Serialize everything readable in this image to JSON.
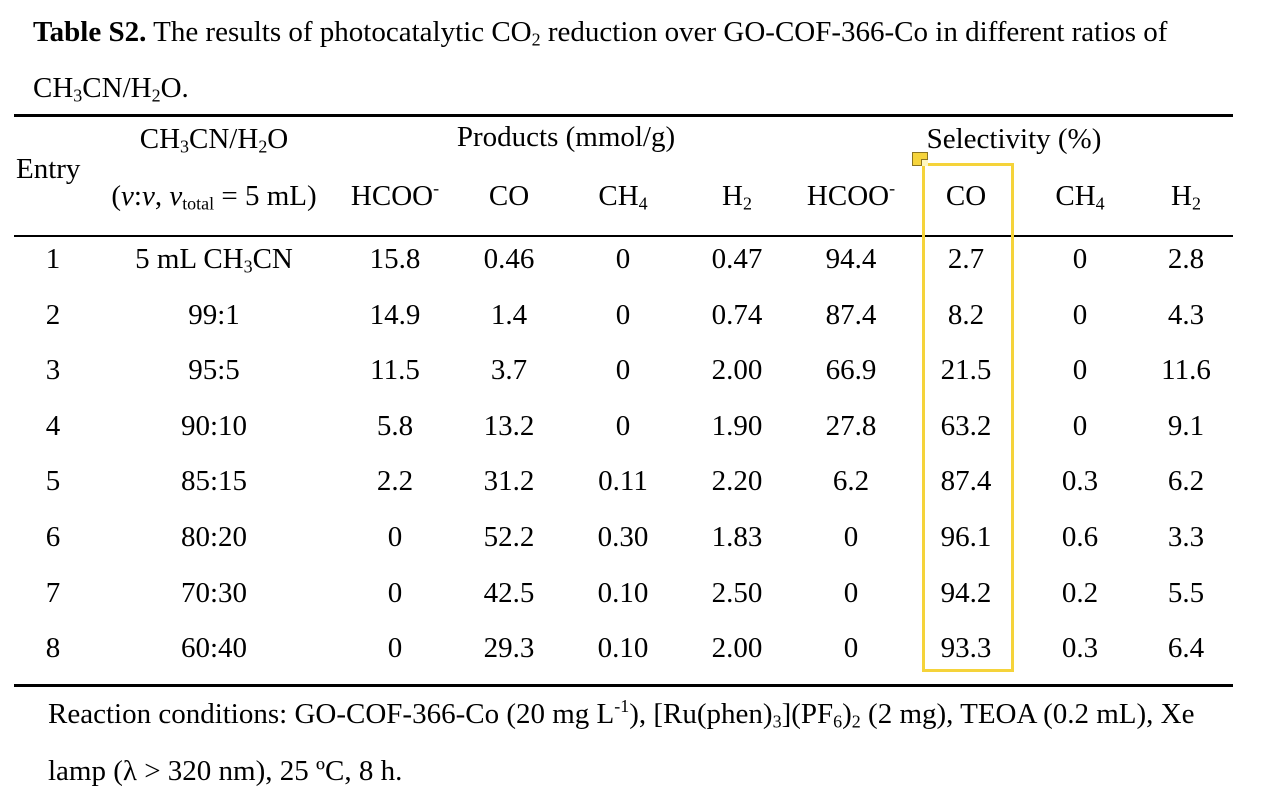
{
  "caption": {
    "label": "Table S2.",
    "text_1": " The results of photocatalytic CO",
    "text_2": " reduction over GO-COF-366-Co in different ratios of CH",
    "text_3": "CN/H",
    "text_4": "O."
  },
  "header": {
    "entry": "Entry",
    "ratio_line1_a": "CH",
    "ratio_line1_b": "CN/H",
    "ratio_line1_c": "O",
    "ratio_line2_a": "(",
    "ratio_line2_b": "v",
    "ratio_line2_c": ":",
    "ratio_line2_d": "v",
    "ratio_line2_e": ", ",
    "ratio_line2_f": "v",
    "ratio_line2_g": "total",
    "ratio_line2_h": " = 5 mL)",
    "products": "Products (mmol/g)",
    "selectivity": "Selectivity (%)",
    "col_hcoo": "HCOO",
    "col_hcoo_sup": "-",
    "col_co": "CO",
    "col_ch4": "CH",
    "col_h2": "H"
  },
  "rows": [
    {
      "entry": "1",
      "ratio": "5 mL CH3CN",
      "hcoo": "15.8",
      "co": "0.46",
      "ch4": "0",
      "h2": "0.47",
      "s_hcoo": "94.4",
      "s_co": "2.7",
      "s_ch4": "0",
      "s_h2": "2.8"
    },
    {
      "entry": "2",
      "ratio": "99:1",
      "hcoo": "14.9",
      "co": "1.4",
      "ch4": "0",
      "h2": "0.74",
      "s_hcoo": "87.4",
      "s_co": "8.2",
      "s_ch4": "0",
      "s_h2": "4.3"
    },
    {
      "entry": "3",
      "ratio": "95:5",
      "hcoo": "11.5",
      "co": "3.7",
      "ch4": "0",
      "h2": "2.00",
      "s_hcoo": "66.9",
      "s_co": "21.5",
      "s_ch4": "0",
      "s_h2": "11.6"
    },
    {
      "entry": "4",
      "ratio": "90:10",
      "hcoo": "5.8",
      "co": "13.2",
      "ch4": "0",
      "h2": "1.90",
      "s_hcoo": "27.8",
      "s_co": "63.2",
      "s_ch4": "0",
      "s_h2": "9.1"
    },
    {
      "entry": "5",
      "ratio": "85:15",
      "hcoo": "2.2",
      "co": "31.2",
      "ch4": "0.11",
      "h2": "2.20",
      "s_hcoo": "6.2",
      "s_co": "87.4",
      "s_ch4": "0.3",
      "s_h2": "6.2"
    },
    {
      "entry": "6",
      "ratio": "80:20",
      "hcoo": "0",
      "co": "52.2",
      "ch4": "0.30",
      "h2": "1.83",
      "s_hcoo": "0",
      "s_co": "96.1",
      "s_ch4": "0.6",
      "s_h2": "3.3"
    },
    {
      "entry": "7",
      "ratio": "70:30",
      "hcoo": "0",
      "co": "42.5",
      "ch4": "0.10",
      "h2": "2.50",
      "s_hcoo": "0",
      "s_co": "94.2",
      "s_ch4": "0.2",
      "s_h2": "5.5"
    },
    {
      "entry": "8",
      "ratio": "60:40",
      "hcoo": "0",
      "co": "29.3",
      "ch4": "0.10",
      "h2": "2.00",
      "s_hcoo": "0",
      "s_co": "93.3",
      "s_ch4": "0.3",
      "s_h2": "6.4"
    }
  ],
  "footer": {
    "p1": "Reaction conditions: GO-COF-366-Co (20 mg L",
    "p1_sup": "-1",
    "p2": "), [Ru(phen)",
    "p3": "](PF",
    "p4": ")",
    "p5": " (2 mg), TEOA (0.2 mL), Xe lamp (λ > 320 nm), 25 ºC, 8 h."
  },
  "colors": {
    "highlight": "#f5d33a",
    "text": "#000000"
  }
}
